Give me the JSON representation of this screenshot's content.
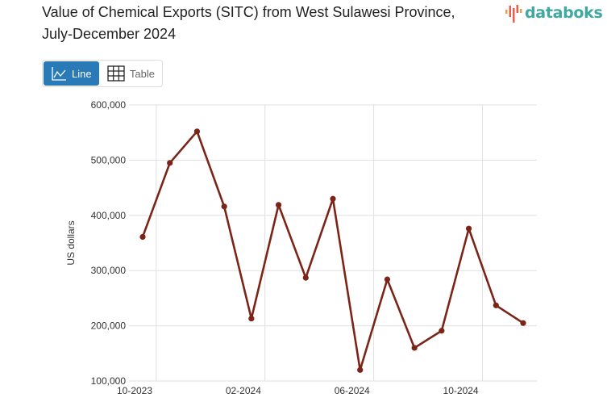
{
  "header": {
    "title": "Value of Chemical Exports (SITC) from West Sulawesi Province, July-December 2024",
    "logo_text": "databoks"
  },
  "view_toggle": {
    "line_label": "Line",
    "table_label": "Table",
    "active": "Line",
    "line_icon": "line-chart-icon",
    "table_icon": "table-grid-icon"
  },
  "colors": {
    "line": "#7b2418",
    "active_button": "#2a7ab8",
    "grid": "#e0e0e0",
    "logo_text": "#3fa8a0",
    "logo_bars": "#e8604c"
  },
  "chart_data": {
    "type": "line",
    "title": "Value of Chemical Exports (SITC) from West Sulawesi Province, July-December 2024",
    "xlabel": "",
    "ylabel": "US dollars",
    "ylim": [
      100000,
      600000
    ],
    "yticks": [
      "100,000",
      "200,000",
      "300,000",
      "400,000",
      "500,000",
      "600,000"
    ],
    "xtick_labels": [
      "10-2023",
      "02-2024",
      "06-2024",
      "10-2024"
    ],
    "grid": true,
    "legend": "none",
    "x": [
      "10-2023",
      "11-2023",
      "12-2023",
      "01-2024",
      "02-2024",
      "03-2024",
      "04-2024",
      "05-2024",
      "06-2024",
      "07-2024",
      "08-2024",
      "09-2024",
      "10-2024",
      "11-2024",
      "12-2024"
    ],
    "series": [
      {
        "name": "US dollars",
        "values": [
          361000,
          495000,
          552000,
          416000,
          213000,
          419000,
          287000,
          430000,
          120000,
          284000,
          160000,
          191000,
          376000,
          237000,
          205000
        ]
      }
    ]
  }
}
